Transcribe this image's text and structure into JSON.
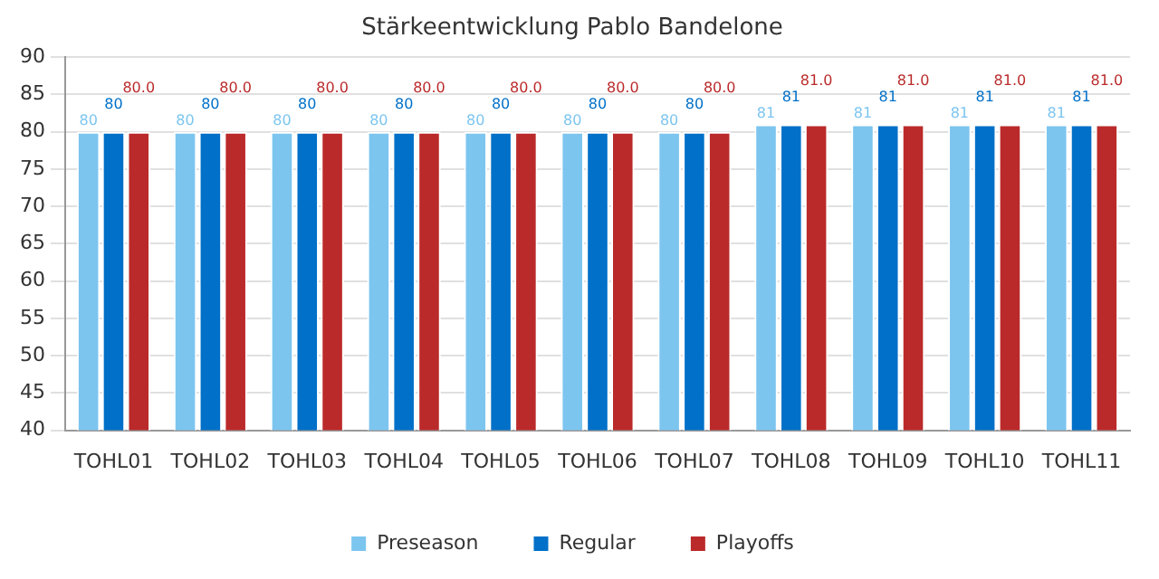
{
  "chart_data": {
    "type": "bar",
    "title": "Stärkeentwicklung Pablo Bandelone",
    "categories": [
      "TOHL01",
      "TOHL02",
      "TOHL03",
      "TOHL04",
      "TOHL05",
      "TOHL06",
      "TOHL07",
      "TOHL08",
      "TOHL09",
      "TOHL10",
      "TOHL11"
    ],
    "series": [
      {
        "name": "Preseason",
        "color": "#7cc5ef",
        "values": [
          80,
          80,
          80,
          80,
          80,
          80,
          80,
          81,
          81,
          81,
          81
        ],
        "value_labels": [
          "80",
          "80",
          "80",
          "80",
          "80",
          "80",
          "80",
          "81",
          "81",
          "81",
          "81"
        ]
      },
      {
        "name": "Regular",
        "color": "#0070c8",
        "values": [
          80,
          80,
          80,
          80,
          80,
          80,
          80,
          81,
          81,
          81,
          81
        ],
        "value_labels": [
          "80",
          "80",
          "80",
          "80",
          "80",
          "80",
          "80",
          "81",
          "81",
          "81",
          "81"
        ]
      },
      {
        "name": "Playoffs",
        "color": "#bb2a2a",
        "values": [
          80,
          80,
          80,
          80,
          80,
          80,
          80,
          81,
          81,
          81,
          81
        ],
        "value_labels": [
          "80.0",
          "80.0",
          "80.0",
          "80.0",
          "80.0",
          "80.0",
          "80.0",
          "81.0",
          "81.0",
          "81.0",
          "81.0"
        ]
      }
    ],
    "ylim": [
      40,
      90
    ],
    "yticks": [
      40,
      45,
      50,
      55,
      60,
      65,
      70,
      75,
      80,
      85,
      90
    ],
    "grid": "y",
    "legend": "bottom"
  }
}
